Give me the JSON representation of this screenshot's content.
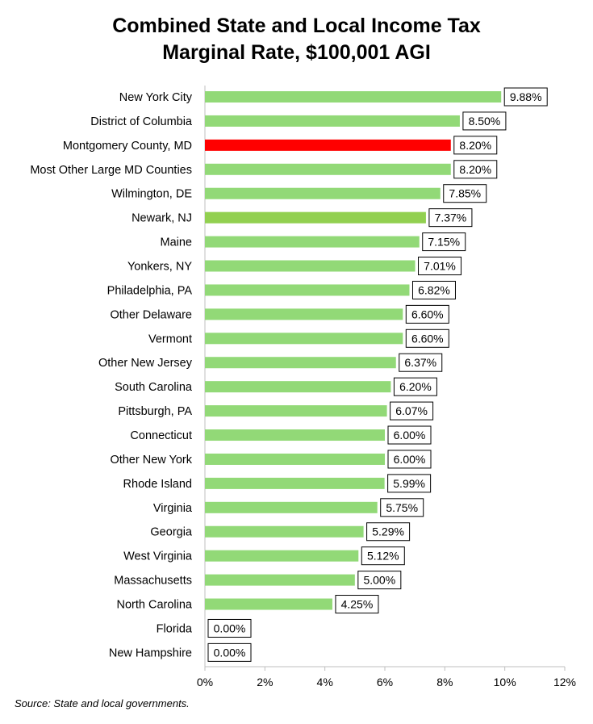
{
  "chart_data": {
    "type": "bar",
    "orientation": "horizontal",
    "title": "Combined State and Local Income Tax Marginal Rate, $100,001 AGI",
    "title_lines": [
      "Combined State and Local Income Tax",
      "Marginal Rate, $100,001 AGI"
    ],
    "categories": [
      "New York City",
      "District of Columbia",
      "Montgomery County, MD",
      "Most Other Large MD Counties",
      "Wilmington, DE",
      "Newark, NJ",
      "Maine",
      "Yonkers, NY",
      "Philadelphia, PA",
      "Other Delaware",
      "Vermont",
      "Other New Jersey",
      "South Carolina",
      "Pittsburgh, PA",
      "Connecticut",
      "Other New York",
      "Rhode Island",
      "Virginia",
      "Georgia",
      "West Virginia",
      "Massachusetts",
      "North Carolina",
      "Florida",
      "New Hampshire"
    ],
    "values": [
      9.88,
      8.5,
      8.2,
      8.2,
      7.85,
      7.37,
      7.15,
      7.01,
      6.82,
      6.6,
      6.6,
      6.37,
      6.2,
      6.07,
      6.0,
      6.0,
      5.99,
      5.75,
      5.29,
      5.12,
      5.0,
      4.25,
      0.0,
      0.0
    ],
    "data_labels": [
      "9.88%",
      "8.50%",
      "8.20%",
      "8.20%",
      "7.85%",
      "7.37%",
      "7.15%",
      "7.01%",
      "6.82%",
      "6.60%",
      "6.60%",
      "6.37%",
      "6.20%",
      "6.07%",
      "6.00%",
      "6.00%",
      "5.99%",
      "5.75%",
      "5.29%",
      "5.12%",
      "5.00%",
      "4.25%",
      "0.00%",
      "0.00%"
    ],
    "bar_colors": {
      "default": "#92d977",
      "Montgomery County, MD": "#ff0000",
      "Newark, NJ": "#92d050"
    },
    "xlim": [
      0,
      12
    ],
    "xticks": [
      0,
      2,
      4,
      6,
      8,
      10,
      12
    ],
    "xtick_labels": [
      "0%",
      "2%",
      "4%",
      "6%",
      "8%",
      "10%",
      "12%"
    ],
    "xlabel": "",
    "ylabel": "",
    "grid": false,
    "legend": "none"
  },
  "footer": {
    "source": "Source: State and local governments."
  }
}
